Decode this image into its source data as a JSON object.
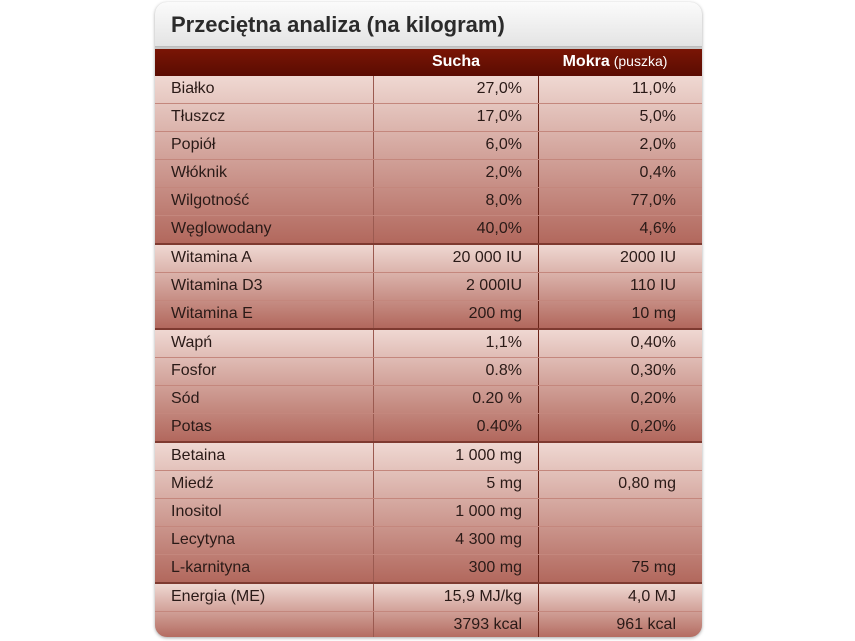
{
  "title": "Przeciętna analiza (na kilogram)",
  "columns": {
    "dry": "Sucha",
    "wet": "Mokra",
    "wet_note": "(puszka)"
  },
  "groups": [
    {
      "rows": [
        {
          "name": "Białko",
          "dry": "27,0%",
          "wet": "11,0%"
        },
        {
          "name": "Tłuszcz",
          "dry": "17,0%",
          "wet": "5,0%"
        },
        {
          "name": "Popiół",
          "dry": "6,0%",
          "wet": "2,0%"
        },
        {
          "name": "Włóknik",
          "dry": "2,0%",
          "wet": "0,4%"
        },
        {
          "name": "Wilgotność",
          "dry": "8,0%",
          "wet": "77,0%"
        },
        {
          "name": "Węglowodany",
          "dry": "40,0%",
          "wet": "4,6%"
        }
      ]
    },
    {
      "rows": [
        {
          "name": "Witamina A",
          "dry": "20 000 IU",
          "wet": "2000 IU"
        },
        {
          "name": "Witamina D3",
          "dry": "2 000IU",
          "wet": "110 IU"
        },
        {
          "name": "Witamina E",
          "dry": "200 mg",
          "wet": "10 mg"
        }
      ]
    },
    {
      "rows": [
        {
          "name": "Wapń",
          "dry": "1,1%",
          "wet": "0,40%"
        },
        {
          "name": "Fosfor",
          "dry": "0.8%",
          "wet": "0,30%"
        },
        {
          "name": "Sód",
          "dry": "0.20 %",
          "wet": "0,20%"
        },
        {
          "name": "Potas",
          "dry": "0.40%",
          "wet": "0,20%"
        }
      ]
    },
    {
      "rows": [
        {
          "name": "Betaina",
          "dry": "1 000 mg",
          "wet": ""
        },
        {
          "name": "Miedź",
          "dry": "5 mg",
          "wet": "0,80 mg"
        },
        {
          "name": "Inositol",
          "dry": "1 000 mg",
          "wet": ""
        },
        {
          "name": "Lecytyna",
          "dry": "4 300 mg",
          "wet": ""
        },
        {
          "name": "L-karnityna",
          "dry": "300 mg",
          "wet": "75 mg"
        }
      ]
    },
    {
      "rows": [
        {
          "name": "Energia (ME)",
          "dry": "15,9 MJ/kg",
          "wet": "4,0 MJ"
        },
        {
          "name": "",
          "dry": "3793 kcal",
          "wet": "961 kcal"
        }
      ]
    }
  ],
  "colors": {
    "header_dark": "#5a0c02",
    "row_gradient_light": "#efd8d2",
    "row_gradient_dark": "#b2685d"
  }
}
